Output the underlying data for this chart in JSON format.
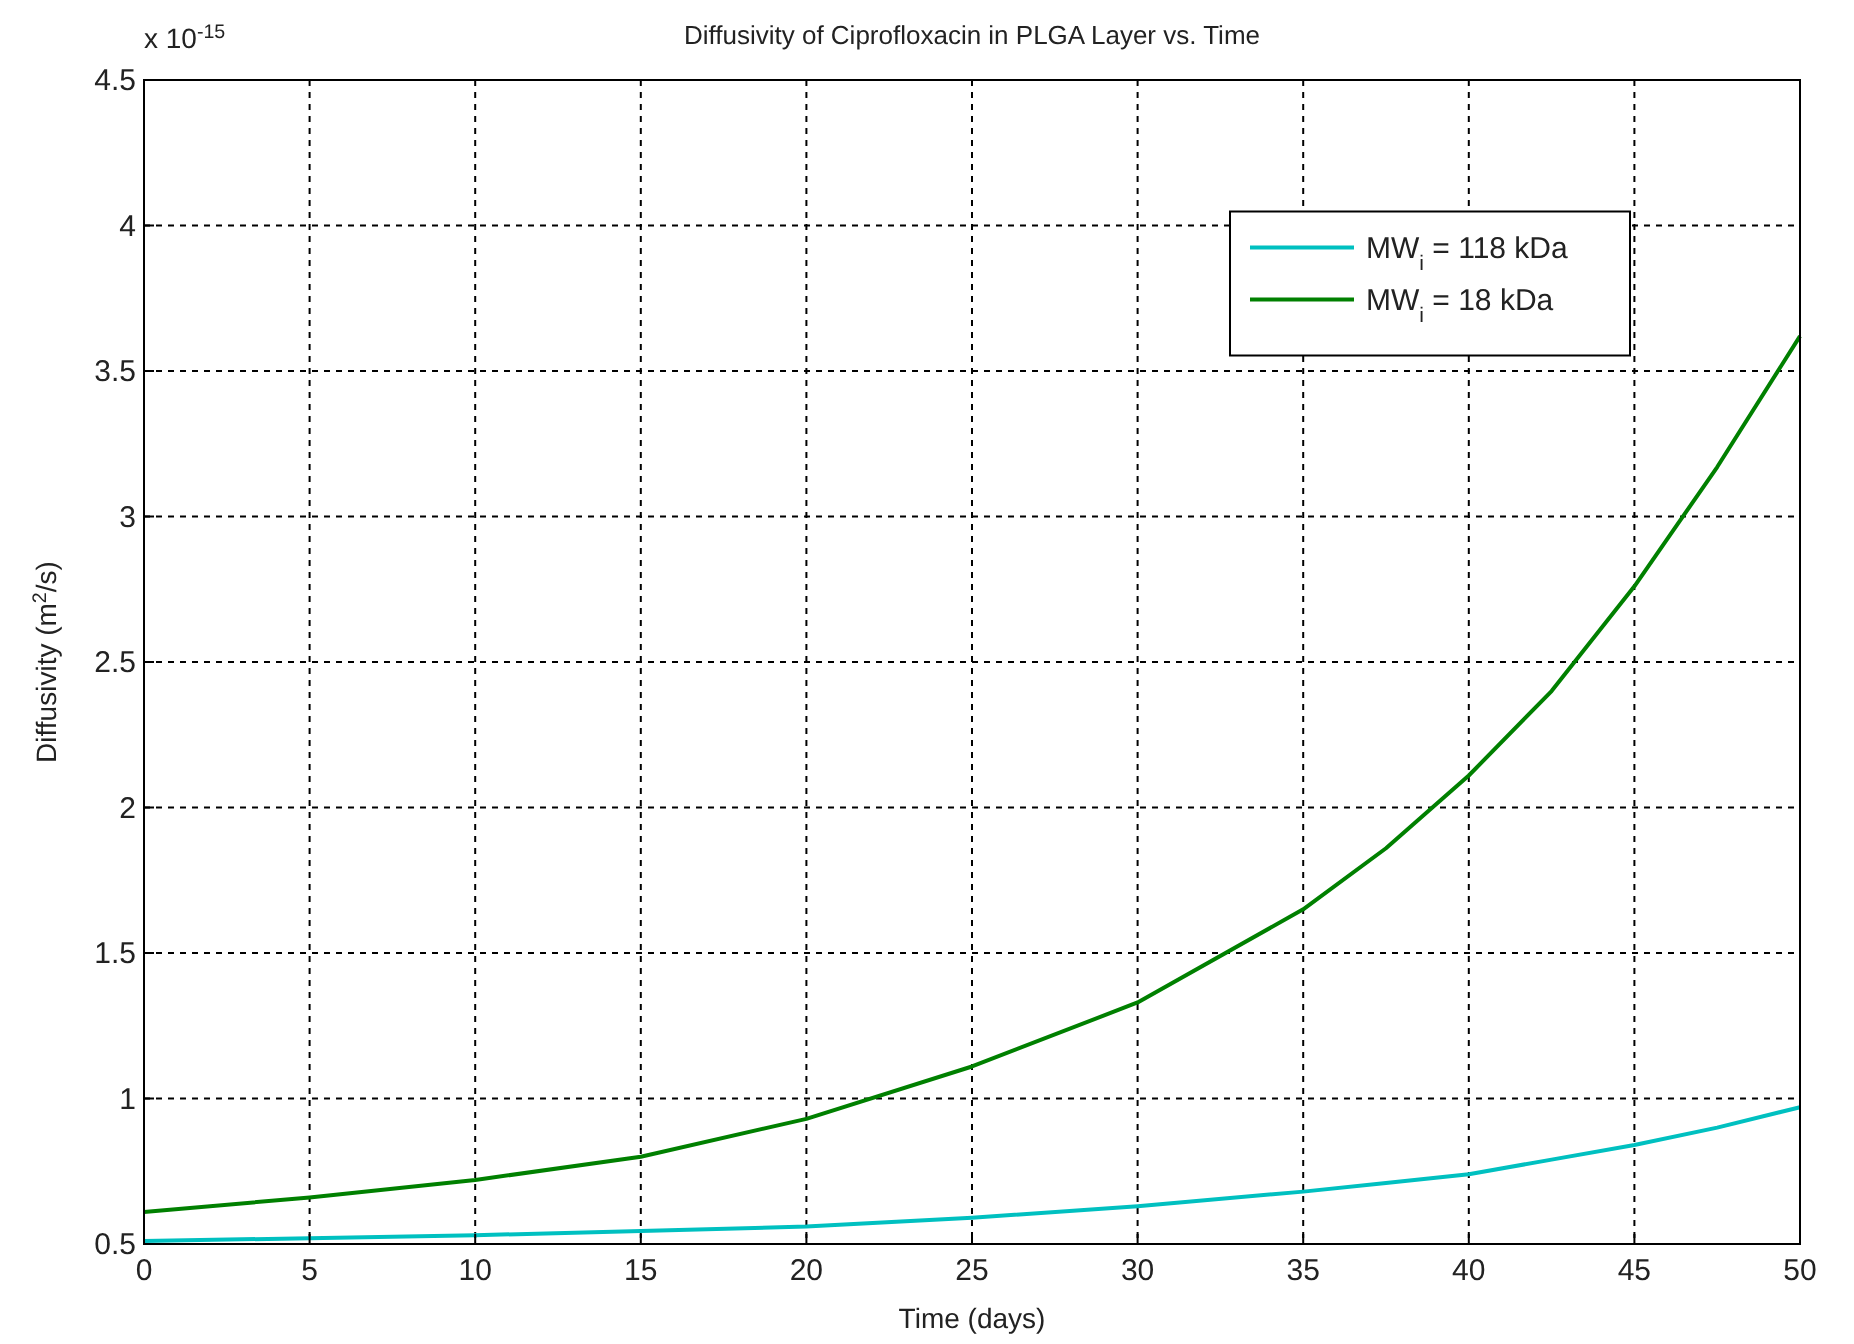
{
  "chart_data": {
    "type": "line",
    "title": "Diffusivity of Ciprofloxacin in PLGA Layer vs. Time",
    "xlabel": "Time (days)",
    "ylabel": "Diffusivity (m$^{2}$/s)",
    "annotations": [
      "x 10$^{-15}$"
    ],
    "x": [
      0,
      5,
      10,
      15,
      20,
      25,
      30,
      35,
      37.5,
      40,
      42.5,
      45,
      47.5,
      50
    ],
    "series": [
      {
        "name": "MW$_{i}$ = 118 kDa",
        "color": "#00c0c0",
        "values": [
          0.51,
          0.52,
          0.53,
          0.545,
          0.56,
          0.59,
          0.63,
          0.68,
          0.71,
          0.74,
          0.79,
          0.84,
          0.9,
          0.97
        ]
      },
      {
        "name": "MW$_{i}$ = 18 kDa",
        "color": "#008000",
        "values": [
          0.61,
          0.66,
          0.72,
          0.8,
          0.93,
          1.11,
          1.33,
          1.65,
          1.86,
          2.11,
          2.4,
          2.76,
          3.17,
          3.62
        ]
      }
    ],
    "xlim": [
      0,
      50
    ],
    "xticks": [
      0,
      5,
      10,
      15,
      20,
      25,
      30,
      35,
      40,
      45,
      50
    ],
    "ylim": [
      0.5,
      4.5
    ],
    "yticks": [
      0.5,
      1,
      1.5,
      2,
      2.5,
      3,
      3.5,
      4,
      4.5
    ],
    "grid": true,
    "legend": "top right",
    "marker": "none",
    "line_style": "solid"
  }
}
